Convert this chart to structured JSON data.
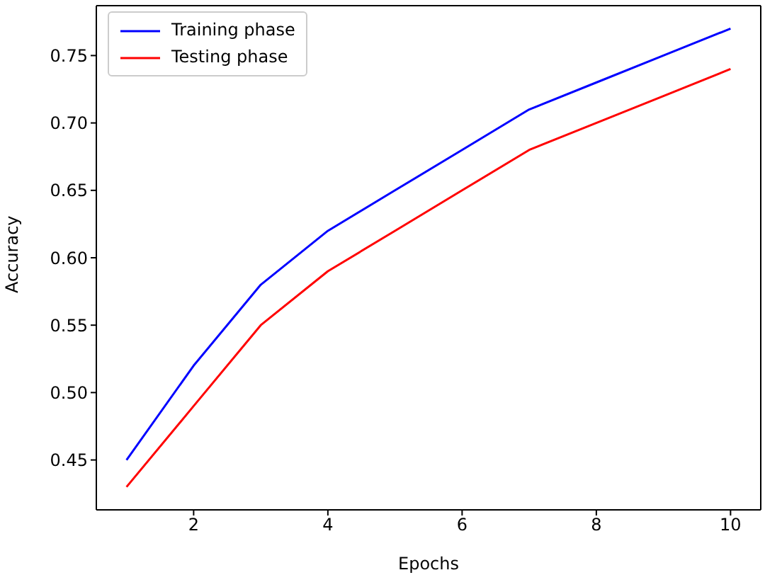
{
  "chart_data": {
    "type": "line",
    "xlabel": "Epochs",
    "ylabel": "Accuracy",
    "x": [
      1,
      2,
      3,
      4,
      5,
      6,
      7,
      8,
      9,
      10
    ],
    "series": [
      {
        "name": "Training phase",
        "color": "#0000ff",
        "values": [
          0.45,
          0.52,
          0.58,
          0.62,
          0.65,
          0.68,
          0.71,
          0.73,
          0.75,
          0.77
        ]
      },
      {
        "name": "Testing phase",
        "color": "#ff0000",
        "values": [
          0.43,
          0.49,
          0.55,
          0.59,
          0.62,
          0.65,
          0.68,
          0.7,
          0.72,
          0.74
        ]
      }
    ],
    "xlim": [
      0.55,
      10.45
    ],
    "xticks": [
      2,
      4,
      6,
      8,
      10
    ],
    "ylim": [
      0.413,
      0.787
    ],
    "yticks": [
      0.45,
      {
        "value": 0.5,
        "label": "0.50"
      },
      0.55,
      {
        "value": 0.6,
        "label": "0.60"
      },
      0.65,
      {
        "value": 0.7,
        "label": "0.70"
      },
      0.75
    ],
    "legend": "top left",
    "grid": false
  }
}
